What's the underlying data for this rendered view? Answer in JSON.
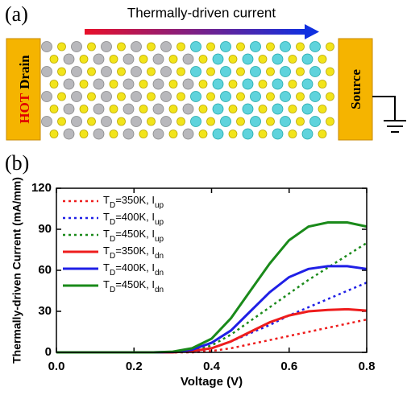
{
  "panel_a": {
    "label": "(a)",
    "arrow_label": "Thermally-driven current",
    "drain_hot": "HOT",
    "drain": "Drain",
    "source": "Source"
  },
  "panel_b": {
    "label": "(b)"
  },
  "chart_data": {
    "type": "line",
    "x": [
      0,
      0.05,
      0.1,
      0.15,
      0.2,
      0.25,
      0.3,
      0.35,
      0.4,
      0.45,
      0.5,
      0.55,
      0.6,
      0.65,
      0.7,
      0.75,
      0.8
    ],
    "series": [
      {
        "name": "TD=350K, Iup",
        "color": "#ee1c1c",
        "linestyle": "dotted",
        "values": [
          0,
          0,
          0,
          0,
          0,
          0,
          0,
          0,
          1,
          3,
          6,
          9,
          12,
          15,
          18,
          21,
          24
        ]
      },
      {
        "name": "TD=400K, Iup",
        "color": "#1f1fe6",
        "linestyle": "dotted",
        "values": [
          0,
          0,
          0,
          0,
          0,
          0,
          0,
          0.5,
          3,
          8,
          14,
          20,
          27,
          33,
          39,
          45,
          51
        ]
      },
      {
        "name": "TD=450K, Iup",
        "color": "#1a8a1a",
        "linestyle": "dotted",
        "values": [
          0,
          0,
          0,
          0,
          0,
          0,
          0,
          1,
          5,
          13,
          23,
          33,
          43,
          53,
          62,
          71,
          80
        ]
      },
      {
        "name": "TD=350K, Idn",
        "color": "#ee1c1c",
        "linestyle": "solid",
        "values": [
          0,
          0,
          0,
          0,
          0,
          0,
          0,
          1,
          3,
          8,
          15,
          22,
          27,
          30,
          31,
          31.5,
          30.5
        ]
      },
      {
        "name": "TD=400K, Idn",
        "color": "#1f1fe6",
        "linestyle": "solid",
        "values": [
          0,
          0,
          0,
          0,
          0,
          0,
          0.3,
          2,
          7,
          16,
          30,
          44,
          55,
          61,
          63,
          63,
          61
        ]
      },
      {
        "name": "TD=450K, Idn",
        "color": "#1a8a1a",
        "linestyle": "solid",
        "values": [
          0,
          0,
          0,
          0,
          0,
          0,
          0.5,
          3,
          10,
          25,
          45,
          65,
          82,
          92,
          95,
          95,
          92
        ]
      }
    ],
    "xlabel": "Voltage (V)",
    "ylabel": "Thermally-driven Current (mA/mm)",
    "xlim": [
      0,
      0.8
    ],
    "xticks": [
      {
        "value": 0,
        "label": "0.0"
      },
      0.2,
      0.4,
      0.6,
      0.8
    ],
    "ylim": [
      0,
      120
    ],
    "yticks": [
      0,
      30,
      60,
      90,
      120
    ],
    "legend": "upper-left"
  }
}
